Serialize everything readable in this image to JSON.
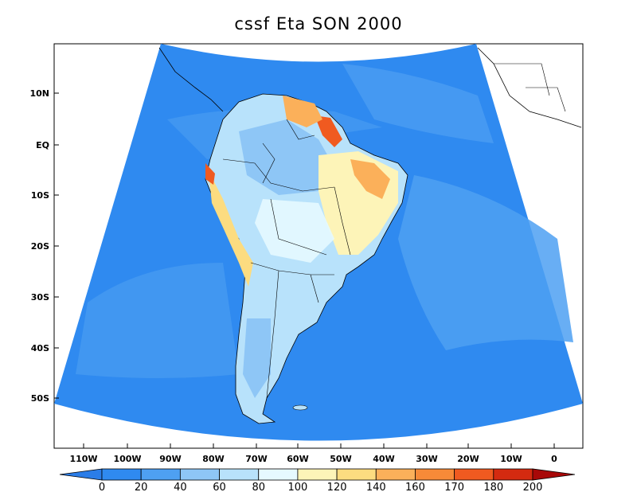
{
  "title": "cssf Eta SON 2000",
  "lat_labels": [
    "10N",
    "EQ",
    "10S",
    "20S",
    "30S",
    "40S",
    "50S"
  ],
  "lon_labels": [
    "110W",
    "100W",
    "90W",
    "80W",
    "70W",
    "60W",
    "50W",
    "40W",
    "30W",
    "20W",
    "10W",
    "0"
  ],
  "colorbar": {
    "labels": [
      "0",
      "20",
      "40",
      "60",
      "80",
      "100",
      "120",
      "140",
      "160",
      "170",
      "180",
      "200"
    ],
    "colors": [
      "#2b7de8",
      "#2f8af0",
      "#4ea0f2",
      "#8ec6f6",
      "#b8e2fb",
      "#e6f9ff",
      "#fdf4b8",
      "#fcdc80",
      "#fbb05a",
      "#f78a38",
      "#f05a20",
      "#d42a10",
      "#a80808"
    ],
    "under_color": "#2b7de8",
    "over_color": "#a80808"
  },
  "colors": {
    "ocean": "#2f8af0",
    "ocean_light": "#4ea0f2",
    "land_base": "#b8e2fb",
    "land_light": "#e6f9ff",
    "land_yellow": "#fdf4b8",
    "land_orange": "#fbb05a",
    "land_red": "#f05a20"
  }
}
